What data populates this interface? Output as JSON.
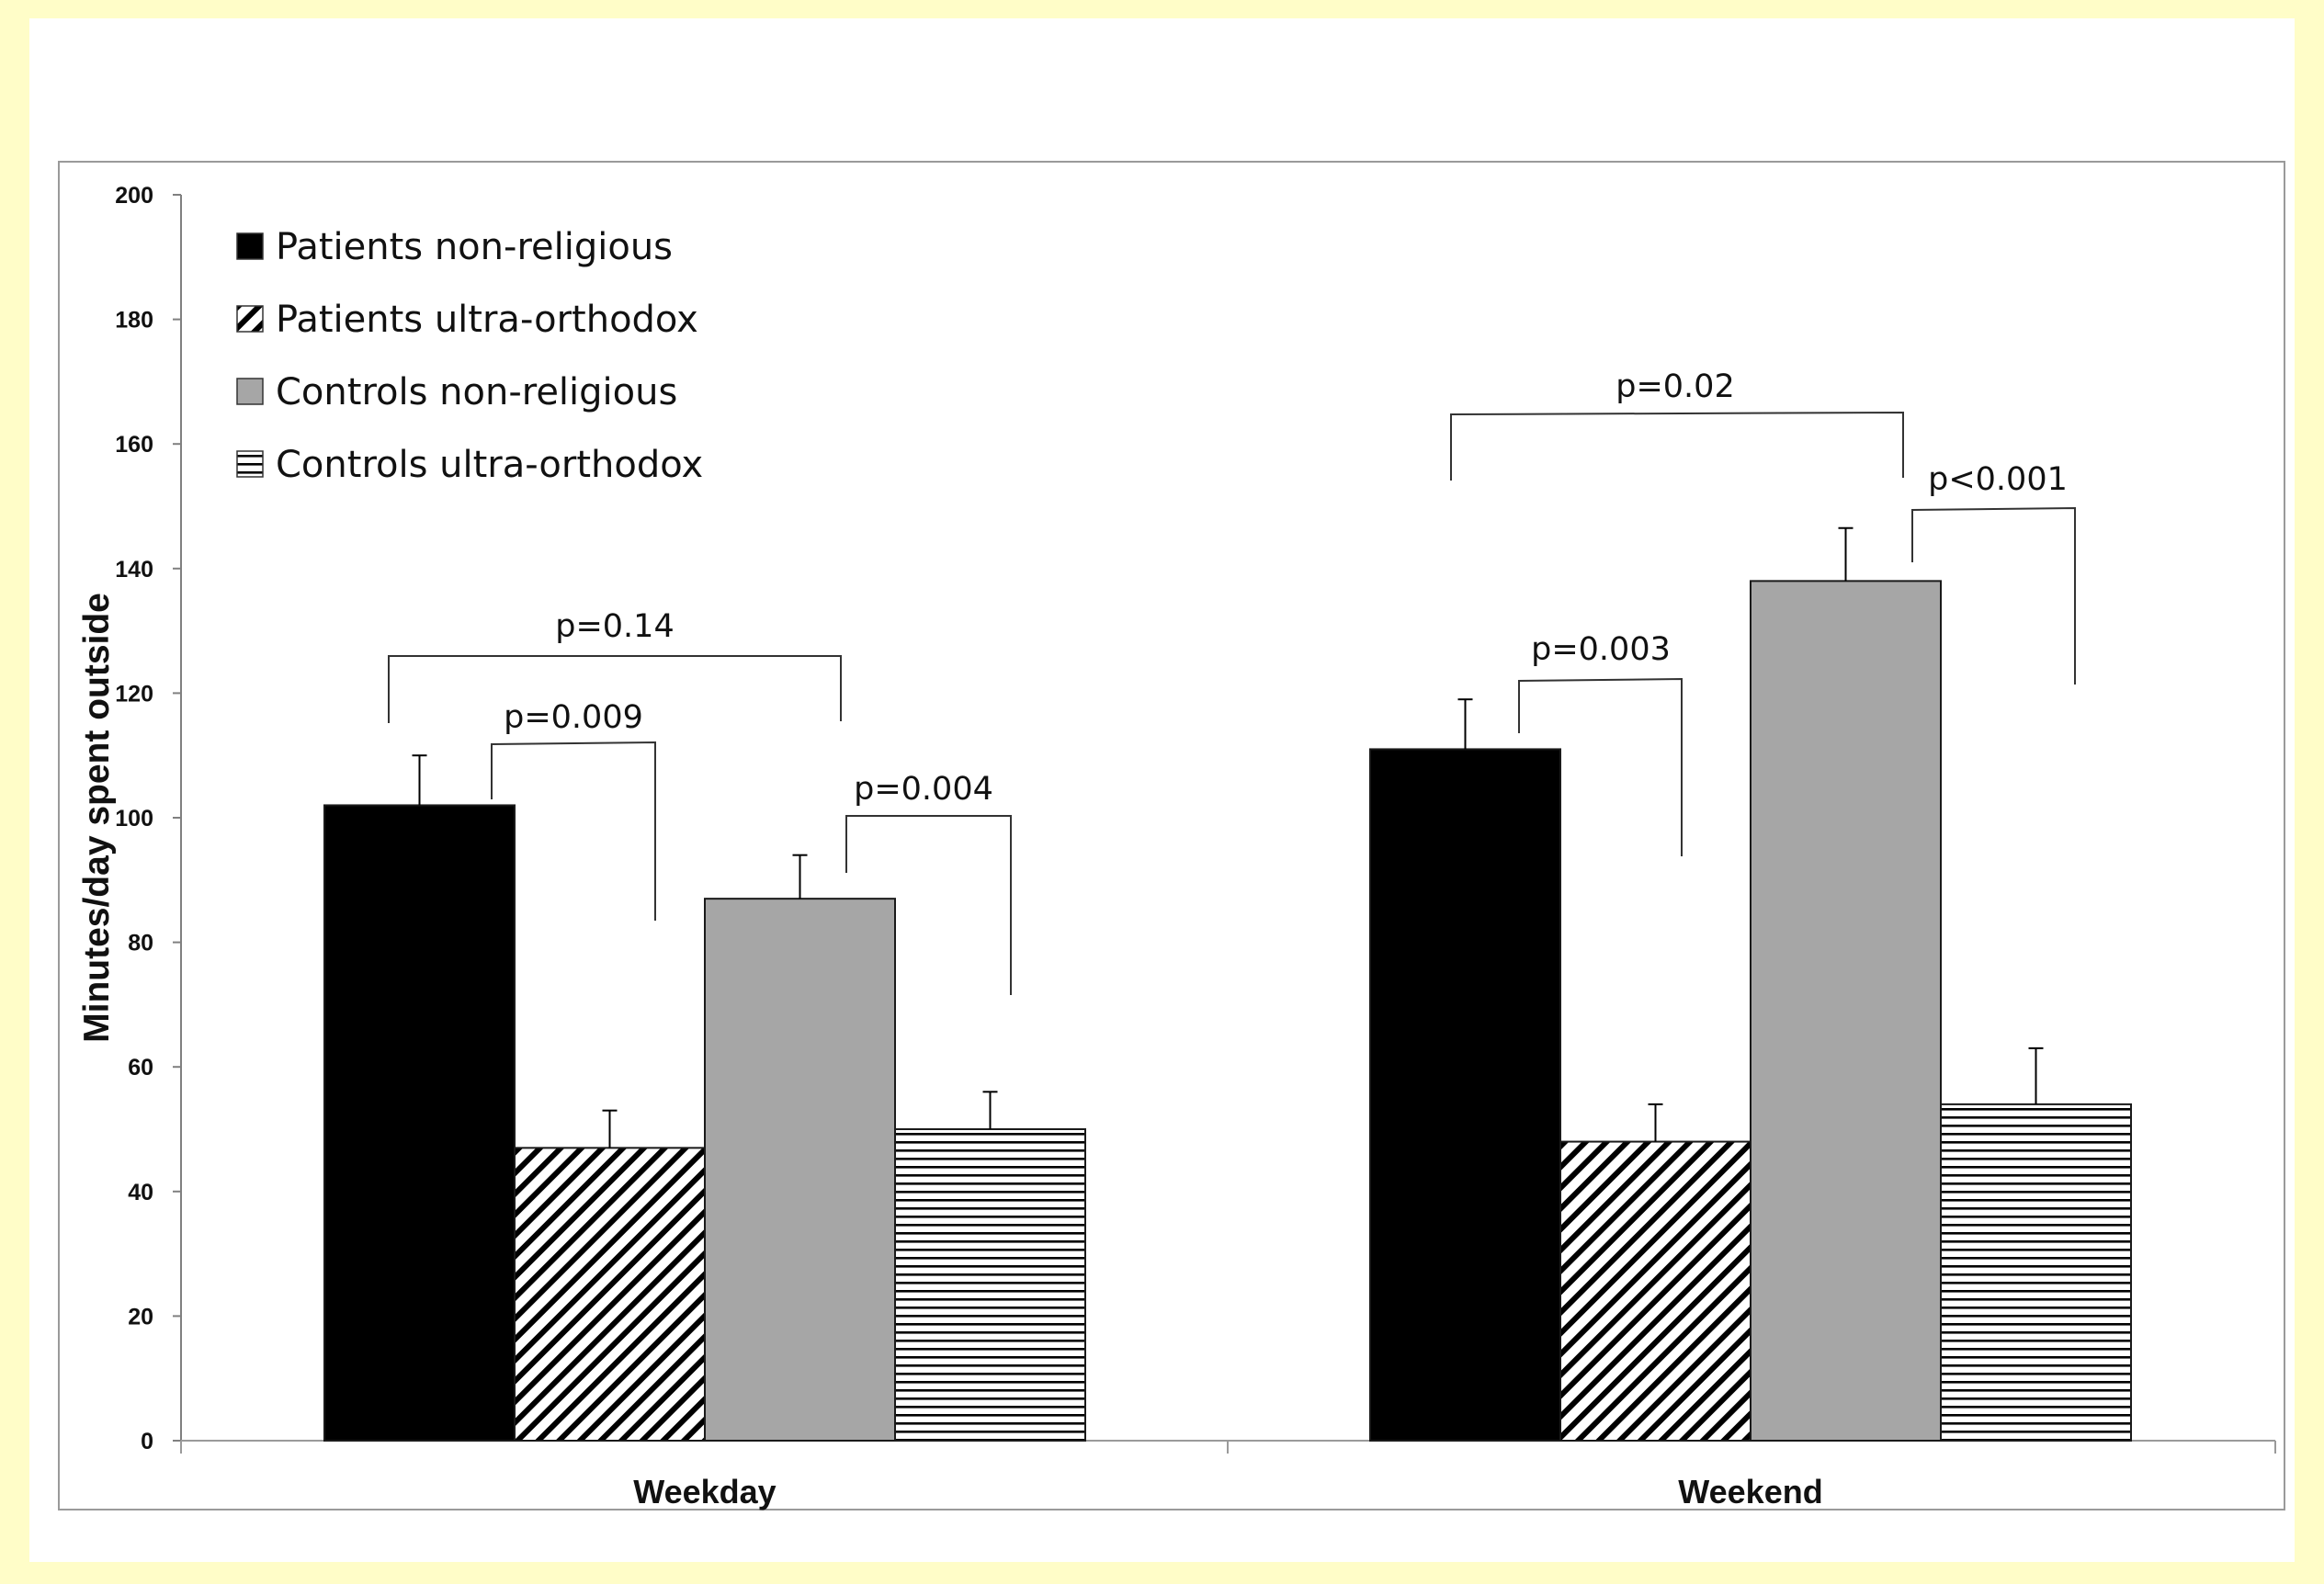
{
  "chart_data": {
    "type": "bar",
    "categories": [
      "Weekday",
      "Weekend"
    ],
    "series": [
      {
        "name": "Patients non-religious",
        "values": [
          102,
          111
        ],
        "errors": [
          8,
          8
        ],
        "fill": "#000000",
        "pattern": "solid"
      },
      {
        "name": "Patients ultra-orthodox",
        "values": [
          47,
          48
        ],
        "errors": [
          6,
          6
        ],
        "fill": "#ffffff",
        "pattern": "diagonal"
      },
      {
        "name": "Controls non-religious",
        "values": [
          87,
          138
        ],
        "errors": [
          7,
          8.5
        ],
        "fill": "#a6a6a6",
        "pattern": "solid"
      },
      {
        "name": "Controls ultra-orthodox",
        "values": [
          50,
          54
        ],
        "errors": [
          6,
          9
        ],
        "fill": "#ffffff",
        "pattern": "horizontal"
      }
    ],
    "ylabel": "Minutes/day spent outside",
    "ylim": [
      0,
      200
    ],
    "yticks": [
      0,
      20,
      40,
      60,
      80,
      100,
      120,
      140,
      160,
      180,
      200
    ],
    "grid": false,
    "legend_position": "top-left",
    "annotations": [
      {
        "text": "p=0.14",
        "category": "Weekday",
        "from_series": 0,
        "to_series": 2
      },
      {
        "text": "p=0.009",
        "category": "Weekday",
        "from_series": 0,
        "to_series": 1
      },
      {
        "text": "p=0.004",
        "category": "Weekday",
        "from_series": 2,
        "to_series": 3
      },
      {
        "text": "p=0.02",
        "category": "Weekend",
        "from_series": 0,
        "to_series": 2
      },
      {
        "text": "p=0.003",
        "category": "Weekend",
        "from_series": 0,
        "to_series": 1
      },
      {
        "text": "p<0.001",
        "category": "Weekend",
        "from_series": 2,
        "to_series": 3
      }
    ]
  },
  "colors": {
    "page_background": "#fffdc8",
    "bar_dark": "#000000",
    "bar_gray": "#a6a6a6"
  }
}
